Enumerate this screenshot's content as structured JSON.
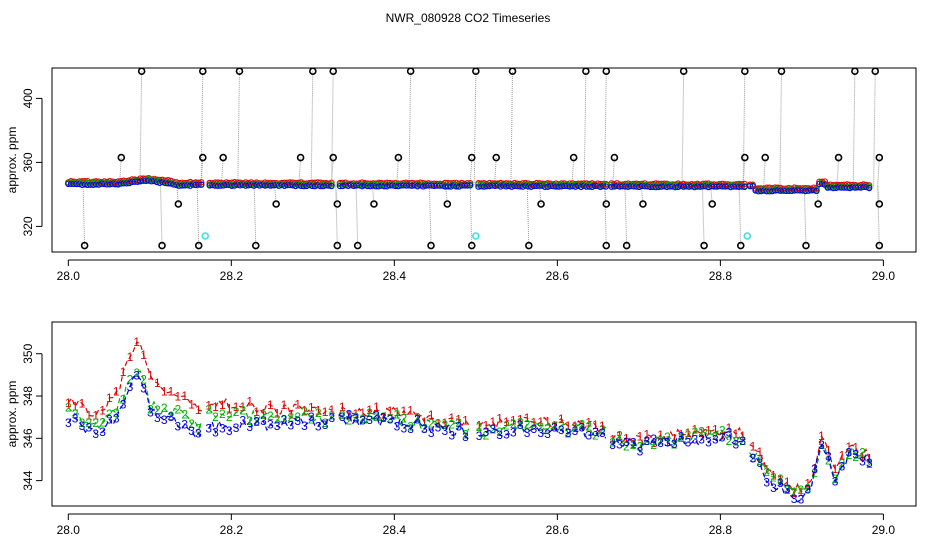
{
  "title": "NWR_080928  CO2 Timeseries",
  "colors": {
    "frame": "#000000",
    "series_1": "#e00000",
    "series_2": "#00b000",
    "series_3": "#0000e0",
    "raw": "#000000",
    "flagged": "#40e0e0",
    "connector": "#9a9a9a"
  },
  "chart_data": [
    {
      "type": "scatter",
      "title": "NWR_080928  CO2 Timeseries",
      "xlabel": "",
      "ylabel": "approx. ppm",
      "xlim": [
        27.98,
        29.04
      ],
      "ylim": [
        304,
        419
      ],
      "x_ticks": [
        28.0,
        28.2,
        28.4,
        28.6,
        28.8,
        29.0
      ],
      "x_tick_labels": [
        "28.0",
        "28.2",
        "28.4",
        "28.6",
        "28.8",
        "29.0"
      ],
      "y_ticks": [
        320,
        360,
        400
      ],
      "y_tick_labels": [
        "320",
        "360",
        "400"
      ],
      "grid": false,
      "gaps": [
        [
          28.165,
          28.17
        ],
        [
          28.325,
          28.33
        ],
        [
          28.495,
          28.5
        ],
        [
          28.66,
          28.665
        ],
        [
          28.83,
          28.835
        ]
      ],
      "series": [
        {
          "name": "1",
          "color": "#e00000",
          "marker": "o",
          "values_note": "baseline ~346-349 ppm"
        },
        {
          "name": "2",
          "color": "#00b000",
          "marker": "o",
          "values_note": "baseline ~345-347 ppm"
        },
        {
          "name": "3",
          "color": "#0000e0",
          "marker": "o",
          "values_note": "baseline ~344-348 ppm"
        }
      ],
      "high_spikes": [
        28.09,
        28.165,
        28.21,
        28.3,
        28.325,
        28.42,
        28.5,
        28.545,
        28.635,
        28.66,
        28.755,
        28.83,
        28.875,
        28.965,
        28.99
      ],
      "mid_spikes": [
        28.065,
        28.165,
        28.19,
        28.285,
        28.325,
        28.405,
        28.495,
        28.525,
        28.62,
        28.67,
        28.83,
        28.855,
        28.945,
        28.995
      ],
      "low_spikes": [
        28.135,
        28.255,
        28.33,
        28.375,
        28.465,
        28.58,
        28.66,
        28.705,
        28.79,
        28.92,
        28.995
      ],
      "floor_spikes": [
        28.02,
        28.115,
        28.16,
        28.23,
        28.33,
        28.355,
        28.445,
        28.495,
        28.565,
        28.66,
        28.685,
        28.78,
        28.825,
        28.905,
        28.995
      ],
      "flagged_points": [
        {
          "x": 28.168,
          "y": 314
        },
        {
          "x": 28.5,
          "y": 314
        },
        {
          "x": 28.833,
          "y": 314
        }
      ]
    },
    {
      "type": "line",
      "title": "",
      "xlabel": "",
      "ylabel": "approx. ppm",
      "xlim": [
        27.98,
        29.04
      ],
      "ylim": [
        342.8,
        351.5
      ],
      "x_ticks": [
        28.0,
        28.2,
        28.4,
        28.6,
        28.8,
        29.0
      ],
      "x_tick_labels": [
        "28.0",
        "28.2",
        "28.4",
        "28.6",
        "28.8",
        "29.0"
      ],
      "y_ticks": [
        344,
        346,
        348,
        350
      ],
      "y_tick_labels": [
        "344",
        "346",
        "348",
        "350"
      ],
      "grid": false,
      "gaps": [
        [
          28.165,
          28.17
        ],
        [
          28.325,
          28.33
        ],
        [
          28.495,
          28.5
        ],
        [
          28.66,
          28.665
        ],
        [
          28.83,
          28.835
        ]
      ],
      "x_knots": [
        28.0,
        28.02,
        28.035,
        28.05,
        28.06,
        28.07,
        28.08,
        28.09,
        28.1,
        28.12,
        28.15,
        28.165,
        28.17,
        28.2,
        28.25,
        28.3,
        28.325,
        28.33,
        28.4,
        28.45,
        28.495,
        28.5,
        28.55,
        28.6,
        28.66,
        28.665,
        28.7,
        28.75,
        28.8,
        28.83,
        28.835,
        28.86,
        28.89,
        28.91,
        28.925,
        28.94,
        28.96,
        28.985
      ],
      "series": [
        {
          "name": "1",
          "color": "#e00000",
          "marker": "1",
          "values": [
            347.9,
            347.4,
            347.0,
            347.7,
            348.2,
            349.2,
            350.4,
            350.6,
            348.8,
            348.2,
            347.6,
            347.0,
            347.8,
            347.6,
            347.4,
            347.3,
            347.1,
            347.3,
            347.2,
            346.9,
            346.7,
            346.5,
            346.8,
            346.7,
            346.5,
            346.1,
            345.9,
            346.2,
            346.3,
            346.2,
            345.8,
            344.5,
            343.6,
            343.8,
            346.1,
            344.5,
            345.6,
            345.2
          ]
        },
        {
          "name": "2",
          "color": "#00b000",
          "marker": "2",
          "values": [
            347.4,
            346.9,
            346.6,
            347.1,
            347.5,
            348.2,
            349.0,
            349.2,
            347.6,
            347.3,
            346.9,
            346.6,
            347.3,
            347.1,
            347.0,
            347.0,
            346.9,
            347.0,
            346.9,
            346.6,
            346.4,
            346.3,
            346.5,
            346.5,
            346.3,
            346.0,
            345.7,
            346.0,
            346.2,
            346.0,
            345.6,
            344.1,
            343.5,
            343.6,
            345.9,
            344.3,
            345.4,
            345.0
          ]
        },
        {
          "name": "3",
          "color": "#0000e0",
          "marker": "3",
          "values": [
            347.0,
            346.3,
            346.1,
            346.7,
            347.1,
            347.8,
            348.7,
            348.9,
            347.3,
            346.9,
            346.3,
            346.1,
            346.5,
            346.6,
            346.6,
            346.8,
            346.8,
            346.9,
            346.8,
            346.5,
            346.2,
            346.2,
            346.4,
            346.4,
            346.2,
            345.9,
            345.6,
            345.9,
            346.1,
            345.9,
            345.4,
            344.0,
            343.2,
            343.5,
            346.0,
            344.1,
            345.3,
            344.9
          ]
        }
      ]
    }
  ]
}
